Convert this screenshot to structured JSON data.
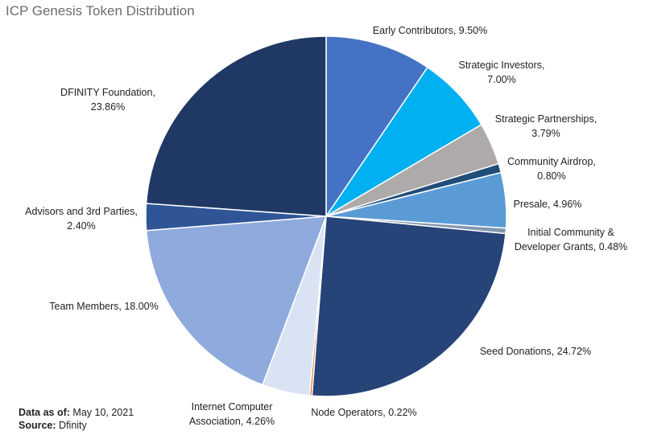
{
  "title": "ICP Genesis Token Distribution",
  "chart_data": {
    "type": "pie",
    "title": "ICP Genesis Token Distribution",
    "slices": [
      {
        "label": "Early Contributors",
        "value": 9.5,
        "value_text": "9.50%",
        "color": "#4472c4"
      },
      {
        "label": "Strategic Investors",
        "value": 7.0,
        "value_text": "7.00%",
        "color": "#00b0f0"
      },
      {
        "label": "Strategic Partnerships",
        "value": 3.79,
        "value_text": "3.79%",
        "color": "#aeaaaa"
      },
      {
        "label": "Community Airdrop",
        "value": 0.8,
        "value_text": "0.80%",
        "color": "#1f4e79"
      },
      {
        "label": "Presale",
        "value": 4.96,
        "value_text": "4.96%",
        "color": "#5b9bd5"
      },
      {
        "label": "Initial Community & Developer Grants",
        "value": 0.48,
        "value_text": "0.48%",
        "color": "#8497b0"
      },
      {
        "label": "Seed Donations",
        "value": 24.72,
        "value_text": "24.72%",
        "color": "#264478"
      },
      {
        "label": "Node Operators",
        "value": 0.22,
        "value_text": "0.22%",
        "color": "#ed7d31"
      },
      {
        "label": "Internet Computer Association",
        "value": 4.26,
        "value_text": "4.26%",
        "color": "#dae3f3"
      },
      {
        "label": "Team Members",
        "value": 18.0,
        "value_text": "18.00%",
        "color": "#8faadc"
      },
      {
        "label": "Advisors and 3rd Parties",
        "value": 2.4,
        "value_text": "2.40%",
        "color": "#2f5597"
      },
      {
        "label": "DFINITY Foundation",
        "value": 23.86,
        "value_text": "23.86%",
        "color": "#203864"
      }
    ]
  },
  "footer": {
    "date_label": "Data as of",
    "date_value": "May 10, 2021",
    "source_label": "Source",
    "source_value": "Dfinity"
  }
}
